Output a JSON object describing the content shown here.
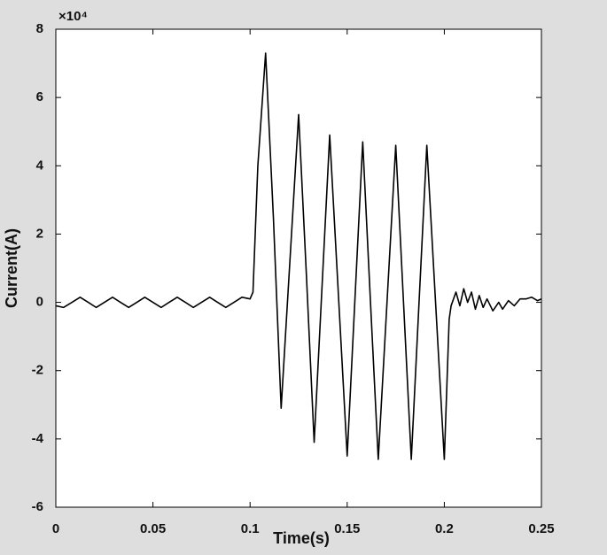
{
  "chart_data": {
    "type": "line",
    "x_label": "Time(s)",
    "y_label": "Current(A)",
    "y_exponent": "×10⁴",
    "color": "#000000",
    "x": [
      0,
      0.004,
      0.0083,
      0.0125,
      0.0167,
      0.0208,
      0.025,
      0.0292,
      0.0333,
      0.0375,
      0.0417,
      0.0458,
      0.05,
      0.0542,
      0.0583,
      0.0625,
      0.0667,
      0.0708,
      0.075,
      0.0792,
      0.0833,
      0.0875,
      0.0917,
      0.0958,
      0.1,
      0.1015,
      0.104,
      0.108,
      0.112,
      0.116,
      0.1205,
      0.125,
      0.129,
      0.133,
      0.137,
      0.141,
      0.1455,
      0.15,
      0.154,
      0.158,
      0.162,
      0.166,
      0.1705,
      0.175,
      0.179,
      0.183,
      0.187,
      0.191,
      0.1955,
      0.2,
      0.2025,
      0.2035,
      0.206,
      0.208,
      0.21,
      0.212,
      0.214,
      0.216,
      0.218,
      0.22,
      0.222,
      0.225,
      0.228,
      0.23,
      0.233,
      0.236,
      0.239,
      0.242,
      0.245,
      0.248,
      0.25
    ],
    "values": [
      -0.1,
      -0.15,
      0,
      0.15,
      0,
      -0.15,
      0,
      0.15,
      0,
      -0.15,
      0,
      0.15,
      0,
      -0.15,
      0,
      0.15,
      0,
      -0.15,
      0,
      0.15,
      0,
      -0.15,
      0,
      0.15,
      0.1,
      0.3,
      4.0,
      7.3,
      2.5,
      -3.1,
      1.2,
      5.5,
      0.8,
      -4.1,
      0.4,
      4.9,
      0.2,
      -4.5,
      0.1,
      4.7,
      0,
      -4.6,
      0,
      4.6,
      0,
      -4.6,
      0,
      4.6,
      0,
      -4.6,
      -0.5,
      -0.1,
      0.3,
      -0.1,
      0.4,
      0,
      0.3,
      -0.2,
      0.2,
      -0.15,
      0.1,
      -0.25,
      0,
      -0.2,
      0.05,
      -0.1,
      0.1,
      0.1,
      0.15,
      0.05,
      0.1
    ],
    "xlim": [
      0,
      0.25
    ],
    "xticks": [
      0,
      0.05,
      0.1,
      0.15,
      0.2,
      0.25
    ],
    "ylim": [
      -6,
      8
    ],
    "yticks": [
      -6,
      -4,
      -2,
      0,
      2,
      4,
      6,
      8
    ]
  }
}
